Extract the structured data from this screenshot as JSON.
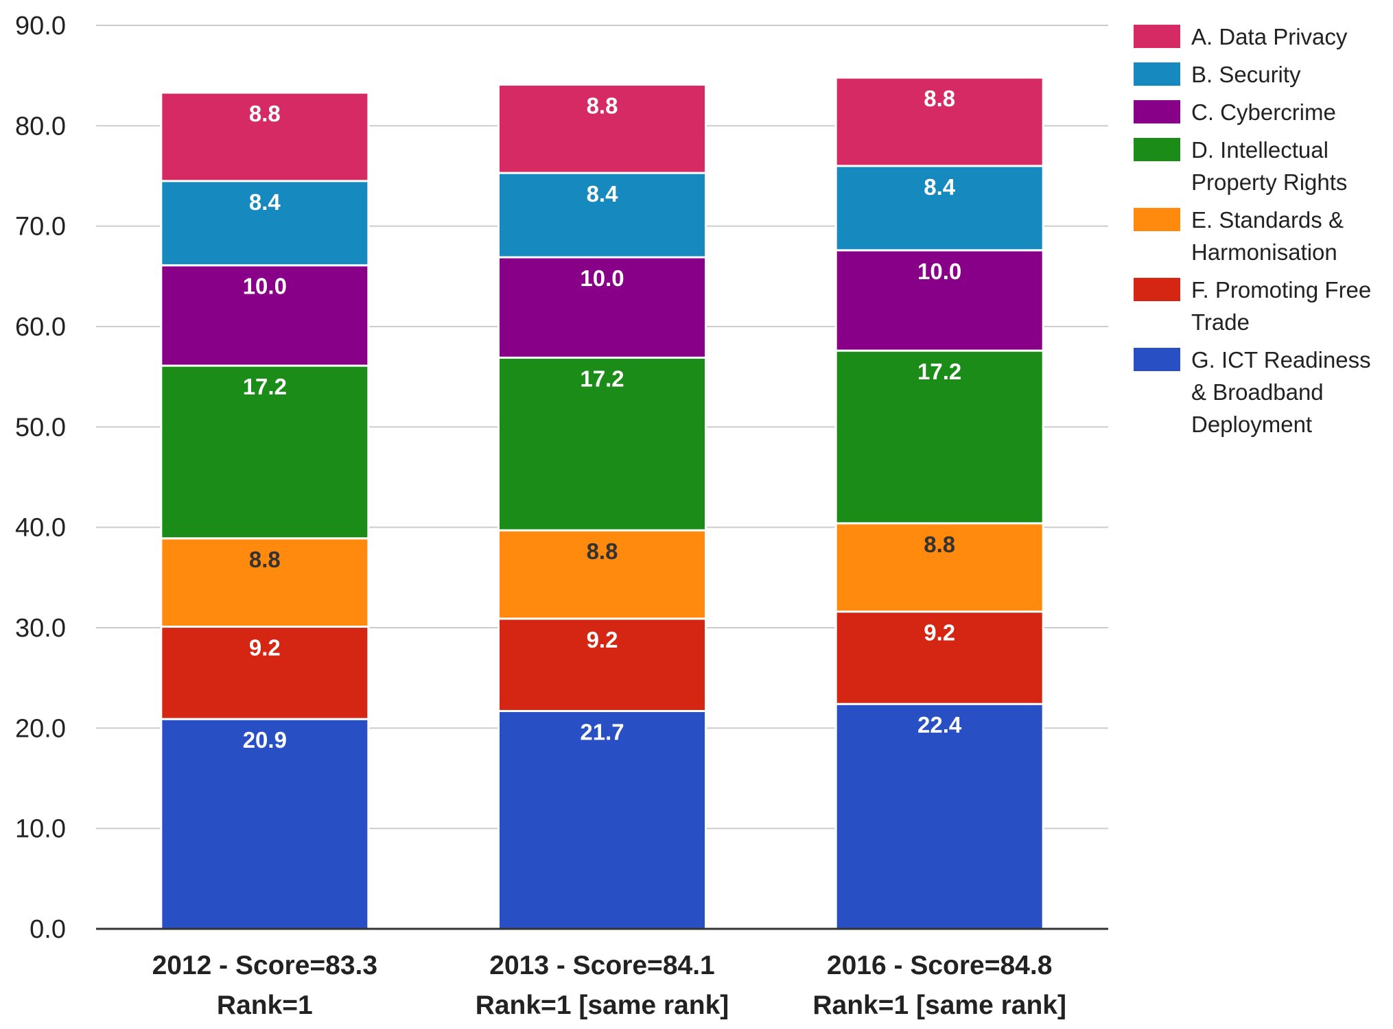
{
  "chart_data": {
    "type": "bar",
    "stacked": true,
    "title": "",
    "xlabel": "",
    "ylabel": "",
    "ylim": [
      0,
      90
    ],
    "yticks": [
      "0.0",
      "10.0",
      "20.0",
      "30.0",
      "40.0",
      "50.0",
      "60.0",
      "70.0",
      "80.0",
      "90.0"
    ],
    "grid": true,
    "legend_position": "right",
    "categories": [
      [
        "2012 - Score=83.3",
        "Rank=1"
      ],
      [
        "2013 - Score=84.1",
        "Rank=1 [same rank]"
      ],
      [
        "2016 - Score=84.8",
        "Rank=1 [same rank]"
      ]
    ],
    "series": [
      {
        "name": "G. ICT Readiness & Broadband Deployment",
        "legend_lines": [
          "G. ICT Readiness",
          "& Broadband",
          "Deployment"
        ],
        "color": "#2850c4",
        "label_color": "#ffffff",
        "values": [
          20.9,
          21.7,
          22.4
        ]
      },
      {
        "name": "F. Promoting Free Trade",
        "legend_lines": [
          "F. Promoting Free",
          "Trade"
        ],
        "color": "#d42612",
        "label_color": "#ffffff",
        "values": [
          9.2,
          9.2,
          9.2
        ]
      },
      {
        "name": "E. Standards & Harmonisation",
        "legend_lines": [
          "E. Standards &",
          "Harmonisation"
        ],
        "color": "#ff8a0d",
        "label_color": "#333333",
        "values": [
          8.8,
          8.8,
          8.8
        ]
      },
      {
        "name": "D. Intellectual Property Rights",
        "legend_lines": [
          "D. Intellectual",
          "Property Rights"
        ],
        "color": "#1b8c17",
        "label_color": "#ffffff",
        "values": [
          17.2,
          17.2,
          17.2
        ]
      },
      {
        "name": "C. Cybercrime",
        "legend_lines": [
          "C. Cybercrime"
        ],
        "color": "#870087",
        "label_color": "#ffffff",
        "values": [
          10.0,
          10.0,
          10.0
        ]
      },
      {
        "name": "B. Security",
        "legend_lines": [
          "B. Security"
        ],
        "color": "#1689be",
        "label_color": "#ffffff",
        "values": [
          8.4,
          8.4,
          8.4
        ]
      },
      {
        "name": "A. Data Privacy",
        "legend_lines": [
          "A. Data Privacy"
        ],
        "color": "#d52a63",
        "label_color": "#ffffff",
        "values": [
          8.8,
          8.8,
          8.8
        ]
      }
    ],
    "legend_order": [
      "A. Data Privacy",
      "B. Security",
      "C. Cybercrime",
      "D. Intellectual Property Rights",
      "E. Standards & Harmonisation",
      "F. Promoting Free Trade",
      "G. ICT Readiness & Broadband Deployment"
    ]
  }
}
